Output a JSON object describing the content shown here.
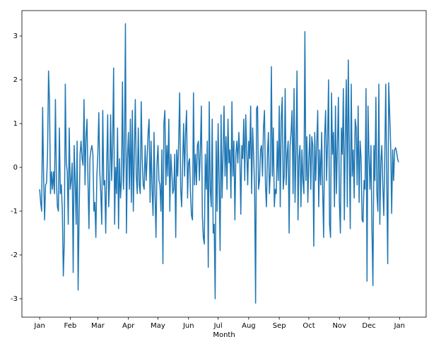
{
  "chart_data": {
    "type": "line",
    "xlabel": "Month",
    "color": "#1f77b4",
    "values": [
      -0.5,
      -0.8,
      -1.0,
      1.37,
      -0.2,
      -1.2,
      -0.4,
      -0.35,
      0.3,
      2.2,
      1.5,
      -0.6,
      -0.1,
      -0.5,
      -0.1,
      -0.6,
      1.55,
      -0.3,
      -0.9,
      -1.0,
      0.9,
      -0.6,
      -0.4,
      -1.0,
      -2.48,
      -1.7,
      1.9,
      0.1,
      -0.1,
      -1.3,
      0.9,
      -0.5,
      -0.3,
      0.1,
      -2.4,
      0.5,
      -0.3,
      -1.3,
      0.6,
      -2.8,
      -1.1,
      0.3,
      0.6,
      0.2,
      0.05,
      1.55,
      -0.4,
      0.7,
      1.1,
      -0.3,
      -1.4,
      0.2,
      0.4,
      0.5,
      0.3,
      -1.0,
      -0.8,
      -1.6,
      -0.2,
      0.3,
      1.25,
      -0.1,
      -0.6,
      -1.3,
      1.3,
      -0.4,
      -0.3,
      -1.5,
      0.0,
      1.2,
      -0.9,
      -0.3,
      1.2,
      -0.3,
      0.5,
      2.27,
      -1.3,
      0.0,
      -0.6,
      0.9,
      -1.4,
      0.2,
      -0.7,
      -0.3,
      1.95,
      -0.5,
      0.3,
      3.28,
      -1.5,
      0.2,
      0.8,
      -0.5,
      1.1,
      -0.8,
      1.3,
      -1.0,
      0.3,
      1.55,
      -0.2,
      -0.6,
      0.9,
      -0.4,
      -0.6,
      1.5,
      0.2,
      -0.4,
      -0.5,
      0.5,
      -0.3,
      0.2,
      0.8,
      1.1,
      -0.8,
      0.6,
      -0.5,
      -1.1,
      0.8,
      -0.6,
      -1.6,
      0.1,
      0.5,
      -0.3,
      -0.4,
      -1.0,
      0.4,
      -2.2,
      1.0,
      1.3,
      -0.4,
      0.5,
      -0.2,
      1.1,
      -1.0,
      0.3,
      -0.1,
      -0.6,
      -0.5,
      0.3,
      -1.6,
      0.4,
      -0.2,
      0.6,
      1.7,
      -0.5,
      -0.9,
      0.1,
      1.0,
      -0.2,
      0.8,
      1.3,
      -0.7,
      0.1,
      0.2,
      -0.6,
      -1.1,
      -1.2,
      1.7,
      -0.4,
      0.3,
      -0.4,
      0.5,
      0.6,
      -0.3,
      0.4,
      1.4,
      -1.1,
      -1.6,
      -1.75,
      0.3,
      -0.5,
      0.6,
      -2.28,
      1.5,
      -0.5,
      -0.9,
      1.1,
      -1.5,
      -1.3,
      -3.0,
      0.6,
      -1.0,
      1.0,
      -0.3,
      -1.9,
      1.2,
      -0.7,
      0.3,
      1.4,
      -0.2,
      0.7,
      -0.5,
      1.1,
      0.1,
      0.4,
      -0.7,
      1.5,
      -0.2,
      0.6,
      -1.2,
      0.3,
      0.6,
      0.1,
      0.8,
      0.3,
      -1.07,
      0.5,
      0.2,
      1.1,
      -0.3,
      1.2,
      0.4,
      -0.4,
      0.6,
      0.2,
      1.4,
      -0.6,
      0.9,
      0.3,
      -0.5,
      -3.1,
      1.35,
      1.4,
      -0.5,
      -0.3,
      0.4,
      0.5,
      -0.2,
      0.9,
      1.3,
      -0.4,
      -0.9,
      0.3,
      0.8,
      -0.6,
      -0.1,
      2.3,
      -0.2,
      0.9,
      -0.9,
      -0.5,
      -0.6,
      0.6,
      -0.3,
      1.4,
      -0.9,
      1.1,
      1.6,
      -0.5,
      -0.2,
      1.8,
      -0.4,
      0.3,
      0.6,
      -1.5,
      0.5,
      0.8,
      1.3,
      -0.6,
      1.8,
      -0.8,
      0.4,
      2.2,
      -1.2,
      0.2,
      0.5,
      -0.9,
      0.4,
      -0.3,
      -0.6,
      3.1,
      -0.3,
      0.7,
      -0.8,
      0.2,
      0.75,
      -0.5,
      0.7,
      0.5,
      -1.8,
      0.8,
      -0.3,
      0.5,
      1.3,
      -0.9,
      0.4,
      -0.4,
      0.8,
      -0.5,
      -1.6,
      0.7,
      1.3,
      -0.3,
      0.6,
      2.0,
      -1.3,
      -1.6,
      1.7,
      0.3,
      0.8,
      -0.9,
      1.4,
      -0.6,
      0.5,
      1.6,
      -0.8,
      -1.5,
      0.9,
      0.3,
      1.8,
      -1.2,
      0.7,
      2.0,
      -0.9,
      2.45,
      0.5,
      -1.4,
      1.9,
      -0.2,
      0.4,
      -0.7,
      1.1,
      0.9,
      -0.4,
      1.4,
      -0.8,
      0.6,
      0.2,
      -1.2,
      -1.25,
      -0.3,
      -0.5,
      1.8,
      -2.6,
      1.4,
      0.3,
      -0.5,
      0.5,
      -1.4,
      -2.7,
      0.5,
      -0.3,
      1.6,
      -0.6,
      -1.0,
      1.9,
      -1.3,
      0.1,
      0.5,
      -0.4,
      -1.1,
      0.2,
      1.9,
      -0.3,
      -2.2,
      1.93,
      1.2,
      0.5,
      -1.05,
      0.4,
      -0.3,
      0.4,
      0.45,
      0.35,
      0.2,
      0.12
    ],
    "xlim": [
      -18,
      392
    ],
    "xticks": [
      {
        "value": 0,
        "label": "Jan"
      },
      {
        "value": 31,
        "label": "Feb"
      },
      {
        "value": 59,
        "label": "Mar"
      },
      {
        "value": 90,
        "label": "Apr"
      },
      {
        "value": 120,
        "label": "May"
      },
      {
        "value": 151,
        "label": "Jun"
      },
      {
        "value": 181,
        "label": "Jul"
      },
      {
        "value": 212,
        "label": "Aug"
      },
      {
        "value": 243,
        "label": "Sep"
      },
      {
        "value": 273,
        "label": "Oct"
      },
      {
        "value": 304,
        "label": "Nov"
      },
      {
        "value": 334,
        "label": "Dec"
      },
      {
        "value": 365,
        "label": "Jan"
      }
    ],
    "ylim": [
      -3.42,
      3.58
    ],
    "yticks": [
      -3,
      -2,
      -1,
      0,
      1,
      2,
      3
    ],
    "grid": false
  }
}
